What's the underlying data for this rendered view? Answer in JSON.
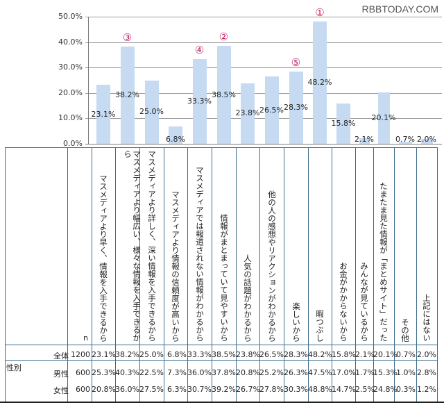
{
  "watermark": "RBBTODAY.COM",
  "chart_data": {
    "type": "bar",
    "title": "",
    "xlabel": "",
    "ylabel": "",
    "ylim": [
      0,
      50
    ],
    "yticks": [
      "0.0%",
      "10.0%",
      "20.0%",
      "30.0%",
      "40.0%",
      "50.0%"
    ],
    "grid": true,
    "bar_color": "#c6dbf2",
    "rank_color": "#c0206a",
    "categories": [
      "マスメディアより早く、情報を入手できるから",
      "マスメディアより幅広い、様々な情報を入手できるから",
      "マスメディアより詳しく、深い情報を入手できるから",
      "マスメディアより情報の信頼度が高いから",
      "マスメディアでは報道されない情報がわかるから",
      "情報がまとまっていて見やすいから",
      "人気の話題がわかるから",
      "他の人の感想やリアクションがわかるから",
      "楽しいから",
      "暇つぶし",
      "お金がかからないから",
      "みんなが見ているから",
      "たまたま見た情報が「まとめサイト」だった",
      "その他",
      "上記にはない"
    ],
    "values": [
      23.1,
      38.2,
      25.0,
      6.8,
      33.3,
      38.5,
      23.8,
      26.5,
      28.3,
      48.2,
      15.8,
      2.1,
      20.1,
      0.7,
      2.0
    ],
    "value_labels": [
      "23.1%",
      "38.2%",
      "25.0%",
      "6.8%",
      "33.3%",
      "38.5%",
      "23.8%",
      "26.5%",
      "28.3%",
      "48.2%",
      "15.8%",
      "2.1%",
      "20.1%",
      "0.7%",
      "2.0%"
    ],
    "annotations": [
      {
        "category_index": 9,
        "label": "①"
      },
      {
        "category_index": 5,
        "label": "②"
      },
      {
        "category_index": 1,
        "label": "③"
      },
      {
        "category_index": 4,
        "label": "④"
      },
      {
        "category_index": 8,
        "label": "⑤"
      }
    ],
    "table": {
      "n_header": "n",
      "group_label": "性別",
      "rows": [
        {
          "label": "全体",
          "n": "1200",
          "values": [
            "23.1%",
            "38.2%",
            "25.0%",
            "6.8%",
            "33.3%",
            "38.5%",
            "23.8%",
            "26.5%",
            "28.3%",
            "48.2%",
            "15.8%",
            "2.1%",
            "20.1%",
            "0.7%",
            "2.0%"
          ]
        },
        {
          "label": "男性",
          "n": "600",
          "values": [
            "25.3%",
            "40.3%",
            "22.5%",
            "7.3%",
            "36.0%",
            "37.8%",
            "20.8%",
            "25.2%",
            "26.3%",
            "47.5%",
            "17.0%",
            "1.7%",
            "15.3%",
            "1.0%",
            "2.8%"
          ]
        },
        {
          "label": "女性",
          "n": "600",
          "values": [
            "20.8%",
            "36.0%",
            "27.5%",
            "6.3%",
            "30.7%",
            "39.2%",
            "26.7%",
            "27.8%",
            "30.3%",
            "48.8%",
            "14.7%",
            "2.5%",
            "24.8%",
            "0.3%",
            "1.2%"
          ]
        }
      ]
    }
  }
}
